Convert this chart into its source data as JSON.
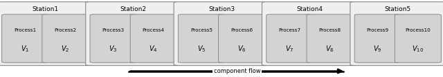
{
  "stations": [
    {
      "name": "Station1",
      "processes": [
        {
          "label": "Process1",
          "v": "V_1"
        },
        {
          "label": "Process2",
          "v": "V_2"
        }
      ]
    },
    {
      "name": "Station2",
      "processes": [
        {
          "label": "Process3",
          "v": "V_3"
        },
        {
          "label": "Process4",
          "v": "V_4"
        }
      ]
    },
    {
      "name": "Station3",
      "processes": [
        {
          "label": "Process5",
          "v": "V_5"
        },
        {
          "label": "Process6",
          "v": "V_6"
        }
      ]
    },
    {
      "name": "Station4",
      "processes": [
        {
          "label": "Process7",
          "v": "V_7"
        },
        {
          "label": "Process8",
          "v": "V_8"
        }
      ]
    },
    {
      "name": "Station5",
      "processes": [
        {
          "label": "Process9",
          "v": "V_9"
        },
        {
          "label": "Process10",
          "v": "V_{10}"
        }
      ]
    }
  ],
  "station_bg": "#efefef",
  "process_bg": "#d3d3d3",
  "border_color": "#888888",
  "text_color": "#000000",
  "arrow_label": "component flow",
  "fig_width": 6.4,
  "fig_height": 1.12,
  "dpi": 100
}
